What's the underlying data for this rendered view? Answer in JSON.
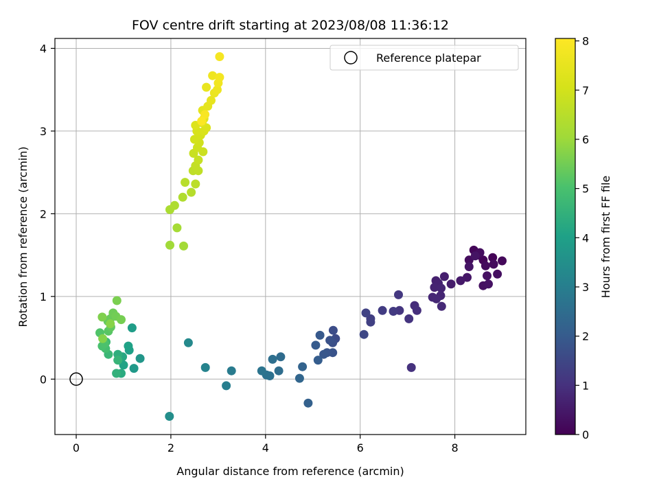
{
  "chart_data": {
    "type": "scatter",
    "title": "FOV centre drift starting at 2023/08/08 11:36:12",
    "xlabel": "Angular distance from reference (arcmin)",
    "ylabel": "Rotation from reference (arcmin)",
    "xlim": [
      -0.45,
      9.5
    ],
    "ylim": [
      -0.67,
      4.12
    ],
    "xticks": [
      0,
      2,
      4,
      6,
      8
    ],
    "yticks": [
      0,
      1,
      2,
      3,
      4
    ],
    "grid": true,
    "legend": {
      "placement": "top-right",
      "entries": [
        "Reference platepar"
      ]
    },
    "reference_point": {
      "name": "Reference platepar",
      "x": 0,
      "y": 0
    },
    "colorbar": {
      "label": "Hours from first FF file",
      "range": [
        0,
        8.05
      ],
      "ticks": [
        0,
        1,
        2,
        3,
        4,
        5,
        6,
        7,
        8
      ],
      "colormap": "viridis"
    },
    "series": [
      {
        "marker": "circle",
        "points": [
          {
            "x": 8.8,
            "y": 1.47,
            "c": 0.05
          },
          {
            "x": 8.6,
            "y": 1.44,
            "c": 0.08
          },
          {
            "x": 8.4,
            "y": 1.56,
            "c": 0.1
          },
          {
            "x": 8.5,
            "y": 1.5,
            "c": 0.12
          },
          {
            "x": 9.0,
            "y": 1.43,
            "c": 0.15
          },
          {
            "x": 8.82,
            "y": 1.39,
            "c": 0.18
          },
          {
            "x": 8.65,
            "y": 1.37,
            "c": 0.2
          },
          {
            "x": 8.3,
            "y": 1.44,
            "c": 0.22
          },
          {
            "x": 8.53,
            "y": 1.53,
            "c": 0.25
          },
          {
            "x": 8.9,
            "y": 1.27,
            "c": 0.28
          },
          {
            "x": 8.68,
            "y": 1.25,
            "c": 0.3
          },
          {
            "x": 8.6,
            "y": 1.13,
            "c": 0.32
          },
          {
            "x": 8.71,
            "y": 1.15,
            "c": 0.35
          },
          {
            "x": 8.43,
            "y": 1.49,
            "c": 0.38
          },
          {
            "x": 8.3,
            "y": 1.36,
            "c": 0.4
          },
          {
            "x": 8.26,
            "y": 1.23,
            "c": 0.45
          },
          {
            "x": 8.12,
            "y": 1.19,
            "c": 0.5
          },
          {
            "x": 7.92,
            "y": 1.15,
            "c": 0.55
          },
          {
            "x": 7.78,
            "y": 1.24,
            "c": 0.6
          },
          {
            "x": 7.6,
            "y": 1.19,
            "c": 0.63
          },
          {
            "x": 7.65,
            "y": 1.16,
            "c": 0.66
          },
          {
            "x": 7.57,
            "y": 1.11,
            "c": 0.7
          },
          {
            "x": 7.71,
            "y": 1.1,
            "c": 0.72
          },
          {
            "x": 7.7,
            "y": 1.01,
            "c": 0.75
          },
          {
            "x": 7.53,
            "y": 0.99,
            "c": 0.78
          },
          {
            "x": 7.61,
            "y": 0.97,
            "c": 0.8
          },
          {
            "x": 7.72,
            "y": 0.88,
            "c": 0.85
          },
          {
            "x": 7.15,
            "y": 0.89,
            "c": 0.9
          },
          {
            "x": 7.2,
            "y": 0.83,
            "c": 0.95
          },
          {
            "x": 7.08,
            "y": 0.14,
            "c": 1.0
          },
          {
            "x": 7.03,
            "y": 0.73,
            "c": 1.05
          },
          {
            "x": 6.83,
            "y": 0.83,
            "c": 1.1
          },
          {
            "x": 6.81,
            "y": 1.02,
            "c": 1.15
          },
          {
            "x": 6.7,
            "y": 0.82,
            "c": 1.2
          },
          {
            "x": 6.47,
            "y": 0.83,
            "c": 1.25
          },
          {
            "x": 6.22,
            "y": 0.73,
            "c": 1.3
          },
          {
            "x": 6.22,
            "y": 0.69,
            "c": 1.35
          },
          {
            "x": 6.12,
            "y": 0.8,
            "c": 1.4
          },
          {
            "x": 6.08,
            "y": 0.54,
            "c": 1.5
          },
          {
            "x": 5.48,
            "y": 0.49,
            "c": 1.6
          },
          {
            "x": 5.43,
            "y": 0.59,
            "c": 1.65
          },
          {
            "x": 5.42,
            "y": 0.44,
            "c": 1.7
          },
          {
            "x": 5.36,
            "y": 0.47,
            "c": 1.75
          },
          {
            "x": 5.42,
            "y": 0.32,
            "c": 1.8
          },
          {
            "x": 5.3,
            "y": 0.32,
            "c": 1.85
          },
          {
            "x": 5.23,
            "y": 0.3,
            "c": 1.9
          },
          {
            "x": 5.15,
            "y": 0.53,
            "c": 1.95
          },
          {
            "x": 5.06,
            "y": 0.41,
            "c": 2.0
          },
          {
            "x": 5.11,
            "y": 0.23,
            "c": 2.05
          },
          {
            "x": 4.9,
            "y": -0.29,
            "c": 2.15
          },
          {
            "x": 4.78,
            "y": 0.15,
            "c": 2.2
          },
          {
            "x": 4.72,
            "y": 0.01,
            "c": 2.3
          },
          {
            "x": 4.32,
            "y": 0.27,
            "c": 2.45
          },
          {
            "x": 4.28,
            "y": 0.1,
            "c": 2.5
          },
          {
            "x": 4.15,
            "y": 0.24,
            "c": 2.55
          },
          {
            "x": 4.09,
            "y": 0.04,
            "c": 2.6
          },
          {
            "x": 4.02,
            "y": 0.05,
            "c": 2.65
          },
          {
            "x": 3.92,
            "y": 0.1,
            "c": 2.7
          },
          {
            "x": 3.28,
            "y": 0.1,
            "c": 2.9
          },
          {
            "x": 3.17,
            "y": -0.08,
            "c": 3.0
          },
          {
            "x": 2.73,
            "y": 0.14,
            "c": 3.15
          },
          {
            "x": 2.37,
            "y": 0.44,
            "c": 3.3
          },
          {
            "x": 1.97,
            "y": -0.45,
            "c": 3.45
          },
          {
            "x": 1.35,
            "y": 0.25,
            "c": 3.7
          },
          {
            "x": 1.22,
            "y": 0.13,
            "c": 3.8
          },
          {
            "x": 1.18,
            "y": 0.62,
            "c": 3.9
          },
          {
            "x": 1.12,
            "y": 0.35,
            "c": 4.0
          },
          {
            "x": 1.1,
            "y": 0.4,
            "c": 4.05
          },
          {
            "x": 1.0,
            "y": 0.17,
            "c": 4.1
          },
          {
            "x": 0.98,
            "y": 0.27,
            "c": 4.2
          },
          {
            "x": 0.95,
            "y": 0.07,
            "c": 4.3
          },
          {
            "x": 0.88,
            "y": 0.3,
            "c": 4.4
          },
          {
            "x": 0.85,
            "y": 0.07,
            "c": 4.5
          },
          {
            "x": 0.88,
            "y": 0.23,
            "c": 4.6
          },
          {
            "x": 0.68,
            "y": 0.3,
            "c": 4.7
          },
          {
            "x": 0.63,
            "y": 0.45,
            "c": 4.8
          },
          {
            "x": 0.62,
            "y": 0.37,
            "c": 4.9
          },
          {
            "x": 0.55,
            "y": 0.4,
            "c": 5.0
          },
          {
            "x": 0.6,
            "y": 0.43,
            "c": 5.05
          },
          {
            "x": 0.5,
            "y": 0.56,
            "c": 5.1
          },
          {
            "x": 0.68,
            "y": 0.58,
            "c": 5.2
          },
          {
            "x": 0.73,
            "y": 0.63,
            "c": 5.3
          },
          {
            "x": 0.67,
            "y": 0.7,
            "c": 5.35
          },
          {
            "x": 0.72,
            "y": 0.73,
            "c": 5.4
          },
          {
            "x": 0.78,
            "y": 0.8,
            "c": 5.45
          },
          {
            "x": 0.84,
            "y": 0.76,
            "c": 5.5
          },
          {
            "x": 0.95,
            "y": 0.72,
            "c": 5.55
          },
          {
            "x": 0.86,
            "y": 0.95,
            "c": 5.6
          },
          {
            "x": 0.55,
            "y": 0.75,
            "c": 5.65
          },
          {
            "x": 0.56,
            "y": 0.49,
            "c": 5.7
          },
          {
            "x": 0.72,
            "y": 0.67,
            "c": 5.75
          },
          {
            "x": 1.98,
            "y": 1.62,
            "c": 6.05
          },
          {
            "x": 2.27,
            "y": 1.61,
            "c": 6.1
          },
          {
            "x": 2.13,
            "y": 1.83,
            "c": 6.15
          },
          {
            "x": 1.98,
            "y": 2.05,
            "c": 6.25
          },
          {
            "x": 2.08,
            "y": 2.1,
            "c": 6.3
          },
          {
            "x": 2.25,
            "y": 2.2,
            "c": 6.35
          },
          {
            "x": 2.43,
            "y": 2.26,
            "c": 6.45
          },
          {
            "x": 2.3,
            "y": 2.38,
            "c": 6.5
          },
          {
            "x": 2.52,
            "y": 2.36,
            "c": 6.55
          },
          {
            "x": 2.47,
            "y": 2.52,
            "c": 6.6
          },
          {
            "x": 2.58,
            "y": 2.52,
            "c": 6.65
          },
          {
            "x": 2.52,
            "y": 2.58,
            "c": 6.7
          },
          {
            "x": 2.58,
            "y": 2.65,
            "c": 6.75
          },
          {
            "x": 2.48,
            "y": 2.73,
            "c": 6.8
          },
          {
            "x": 2.68,
            "y": 2.75,
            "c": 6.85
          },
          {
            "x": 2.56,
            "y": 2.8,
            "c": 6.9
          },
          {
            "x": 2.6,
            "y": 2.86,
            "c": 6.95
          },
          {
            "x": 2.5,
            "y": 2.9,
            "c": 7.0
          },
          {
            "x": 2.63,
            "y": 2.95,
            "c": 7.05
          },
          {
            "x": 2.55,
            "y": 3.0,
            "c": 7.1
          },
          {
            "x": 2.7,
            "y": 3.0,
            "c": 7.15
          },
          {
            "x": 2.75,
            "y": 3.04,
            "c": 7.2
          },
          {
            "x": 2.52,
            "y": 3.07,
            "c": 7.25
          },
          {
            "x": 2.66,
            "y": 3.1,
            "c": 7.3
          },
          {
            "x": 2.7,
            "y": 3.15,
            "c": 7.35
          },
          {
            "x": 2.67,
            "y": 3.25,
            "c": 7.4
          },
          {
            "x": 2.78,
            "y": 3.3,
            "c": 7.45
          },
          {
            "x": 2.85,
            "y": 3.37,
            "c": 7.5
          },
          {
            "x": 2.75,
            "y": 3.53,
            "c": 7.55
          },
          {
            "x": 2.92,
            "y": 3.46,
            "c": 7.6
          },
          {
            "x": 2.98,
            "y": 3.5,
            "c": 7.65
          },
          {
            "x": 2.88,
            "y": 3.67,
            "c": 7.7
          },
          {
            "x": 3.0,
            "y": 3.58,
            "c": 7.75
          },
          {
            "x": 3.03,
            "y": 3.65,
            "c": 7.8
          },
          {
            "x": 3.03,
            "y": 3.9,
            "c": 7.85
          },
          {
            "x": 2.72,
            "y": 3.2,
            "c": 7.92
          },
          {
            "x": 2.65,
            "y": 3.12,
            "c": 8.0
          }
        ]
      }
    ]
  }
}
